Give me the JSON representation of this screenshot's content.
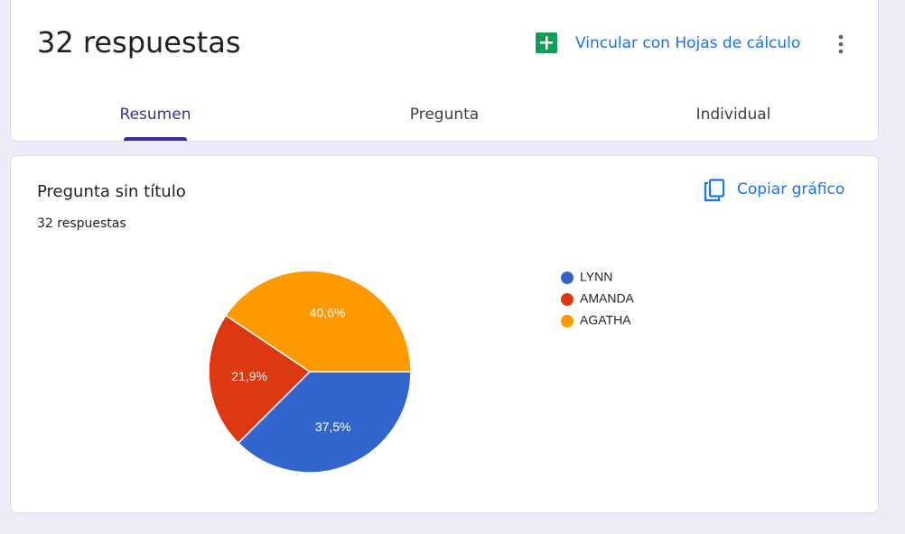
{
  "header": {
    "title": "32 respuestas",
    "link": "Vincular con Hojas de cálculo",
    "tabs": [
      "Resumen",
      "Pregunta",
      "Individual"
    ]
  },
  "card": {
    "question": "Pregunta sin título",
    "count": "32 respuestas",
    "copy": "Copiar gráfico"
  },
  "chart_data": {
    "type": "pie",
    "categories": [
      "LYNN",
      "AMANDA",
      "AGATHA"
    ],
    "values": [
      37.5,
      21.9,
      40.6
    ],
    "value_labels": [
      "37,5%",
      "21,9%",
      "40,6%"
    ],
    "colors": [
      "#3366cc",
      "#dc3912",
      "#ff9900"
    ],
    "legend": "right"
  }
}
